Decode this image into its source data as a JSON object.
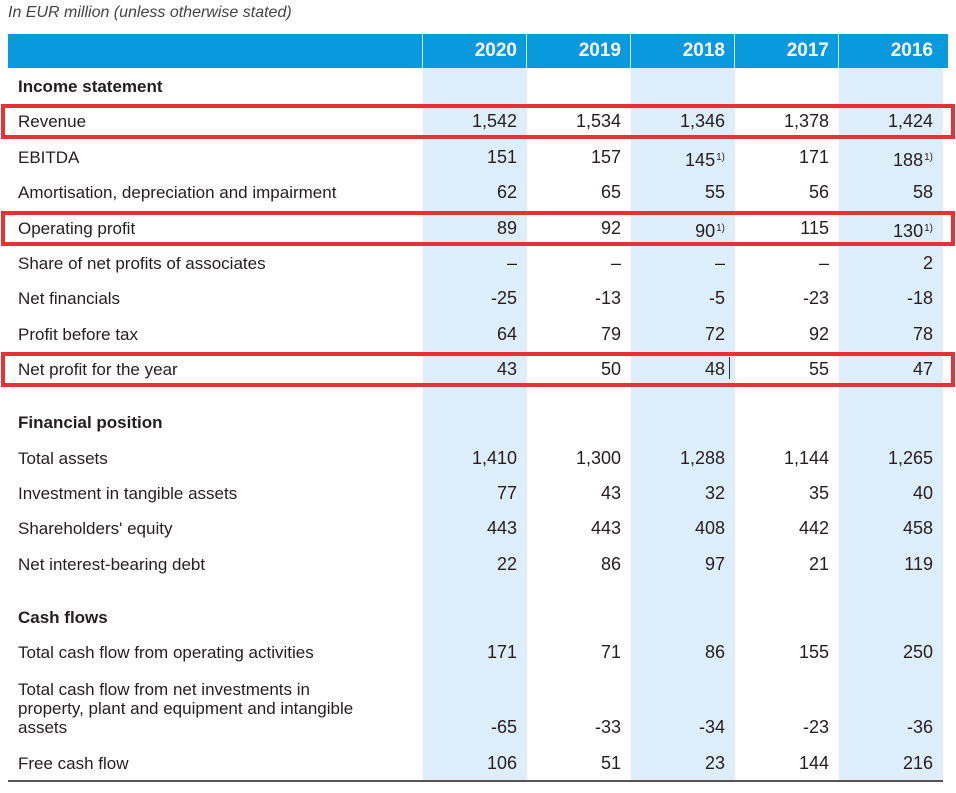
{
  "caption": "In EUR million (unless otherwise stated)",
  "colors": {
    "header": "#0999dd",
    "shade": "#ddeefa",
    "highlight": "#e53238"
  },
  "years": [
    "2020",
    "2019",
    "2018",
    "2017",
    "2016"
  ],
  "sections": {
    "income": "Income statement",
    "position": "Financial position",
    "cash": "Cash flows"
  },
  "rows": [
    {
      "label": "Revenue",
      "values": [
        "1,542",
        "1,534",
        "1,346",
        "1,378",
        "1,424"
      ],
      "notes": [
        "",
        "",
        "",
        "",
        ""
      ]
    },
    {
      "label": "EBITDA",
      "values": [
        "151",
        "157",
        "145",
        "171",
        "188"
      ],
      "notes": [
        "",
        "",
        "1)",
        "",
        "1)"
      ]
    },
    {
      "label": "Amortisation, depreciation and impairment",
      "values": [
        "62",
        "65",
        "55",
        "56",
        "58"
      ],
      "notes": [
        "",
        "",
        "",
        "",
        ""
      ]
    },
    {
      "label": "Operating profit",
      "values": [
        "89",
        "92",
        "90",
        "115",
        "130"
      ],
      "notes": [
        "",
        "",
        "1)",
        "",
        "1)"
      ]
    },
    {
      "label": "Share of net profits of associates",
      "values": [
        "–",
        "–",
        "–",
        "–",
        "2"
      ],
      "notes": [
        "",
        "",
        "",
        "",
        ""
      ]
    },
    {
      "label": "Net financials",
      "values": [
        "-25",
        "-13",
        "-5",
        "-23",
        "-18"
      ],
      "notes": [
        "",
        "",
        "",
        "",
        ""
      ]
    },
    {
      "label": "Profit before tax",
      "values": [
        "64",
        "79",
        "72",
        "92",
        "78"
      ],
      "notes": [
        "",
        "",
        "",
        "",
        ""
      ]
    },
    {
      "label": "Net profit for the year",
      "values": [
        "43",
        "50",
        "48",
        "55",
        "47"
      ],
      "notes": [
        "",
        "",
        "",
        "",
        ""
      ]
    },
    {
      "label": "Total assets",
      "values": [
        "1,410",
        "1,300",
        "1,288",
        "1,144",
        "1,265"
      ],
      "notes": [
        "",
        "",
        "",
        "",
        ""
      ]
    },
    {
      "label": "Investment in tangible assets",
      "values": [
        "77",
        "43",
        "32",
        "35",
        "40"
      ],
      "notes": [
        "",
        "",
        "",
        "",
        ""
      ]
    },
    {
      "label": "Shareholders' equity",
      "values": [
        "443",
        "443",
        "408",
        "442",
        "458"
      ],
      "notes": [
        "",
        "",
        "",
        "",
        ""
      ]
    },
    {
      "label": "Net interest-bearing debt",
      "values": [
        "22",
        "86",
        "97",
        "21",
        "119"
      ],
      "notes": [
        "",
        "",
        "",
        "",
        ""
      ]
    },
    {
      "label": "Total cash flow from operating activities",
      "values": [
        "171",
        "71",
        "86",
        "155",
        "250"
      ],
      "notes": [
        "",
        "",
        "",
        "",
        ""
      ]
    },
    {
      "label": "Total cash flow from net investments in property, plant and equipment and intangible assets",
      "values": [
        "-65",
        "-33",
        "-34",
        "-23",
        "-36"
      ],
      "notes": [
        "",
        "",
        "",
        "",
        ""
      ]
    },
    {
      "label": "Free cash flow",
      "values": [
        "106",
        "51",
        "23",
        "144",
        "216"
      ],
      "notes": [
        "",
        "",
        "",
        "",
        ""
      ]
    }
  ],
  "multiline_label": [
    "Total cash flow from net investments in",
    "property, plant and equipment and intangible",
    "assets"
  ]
}
